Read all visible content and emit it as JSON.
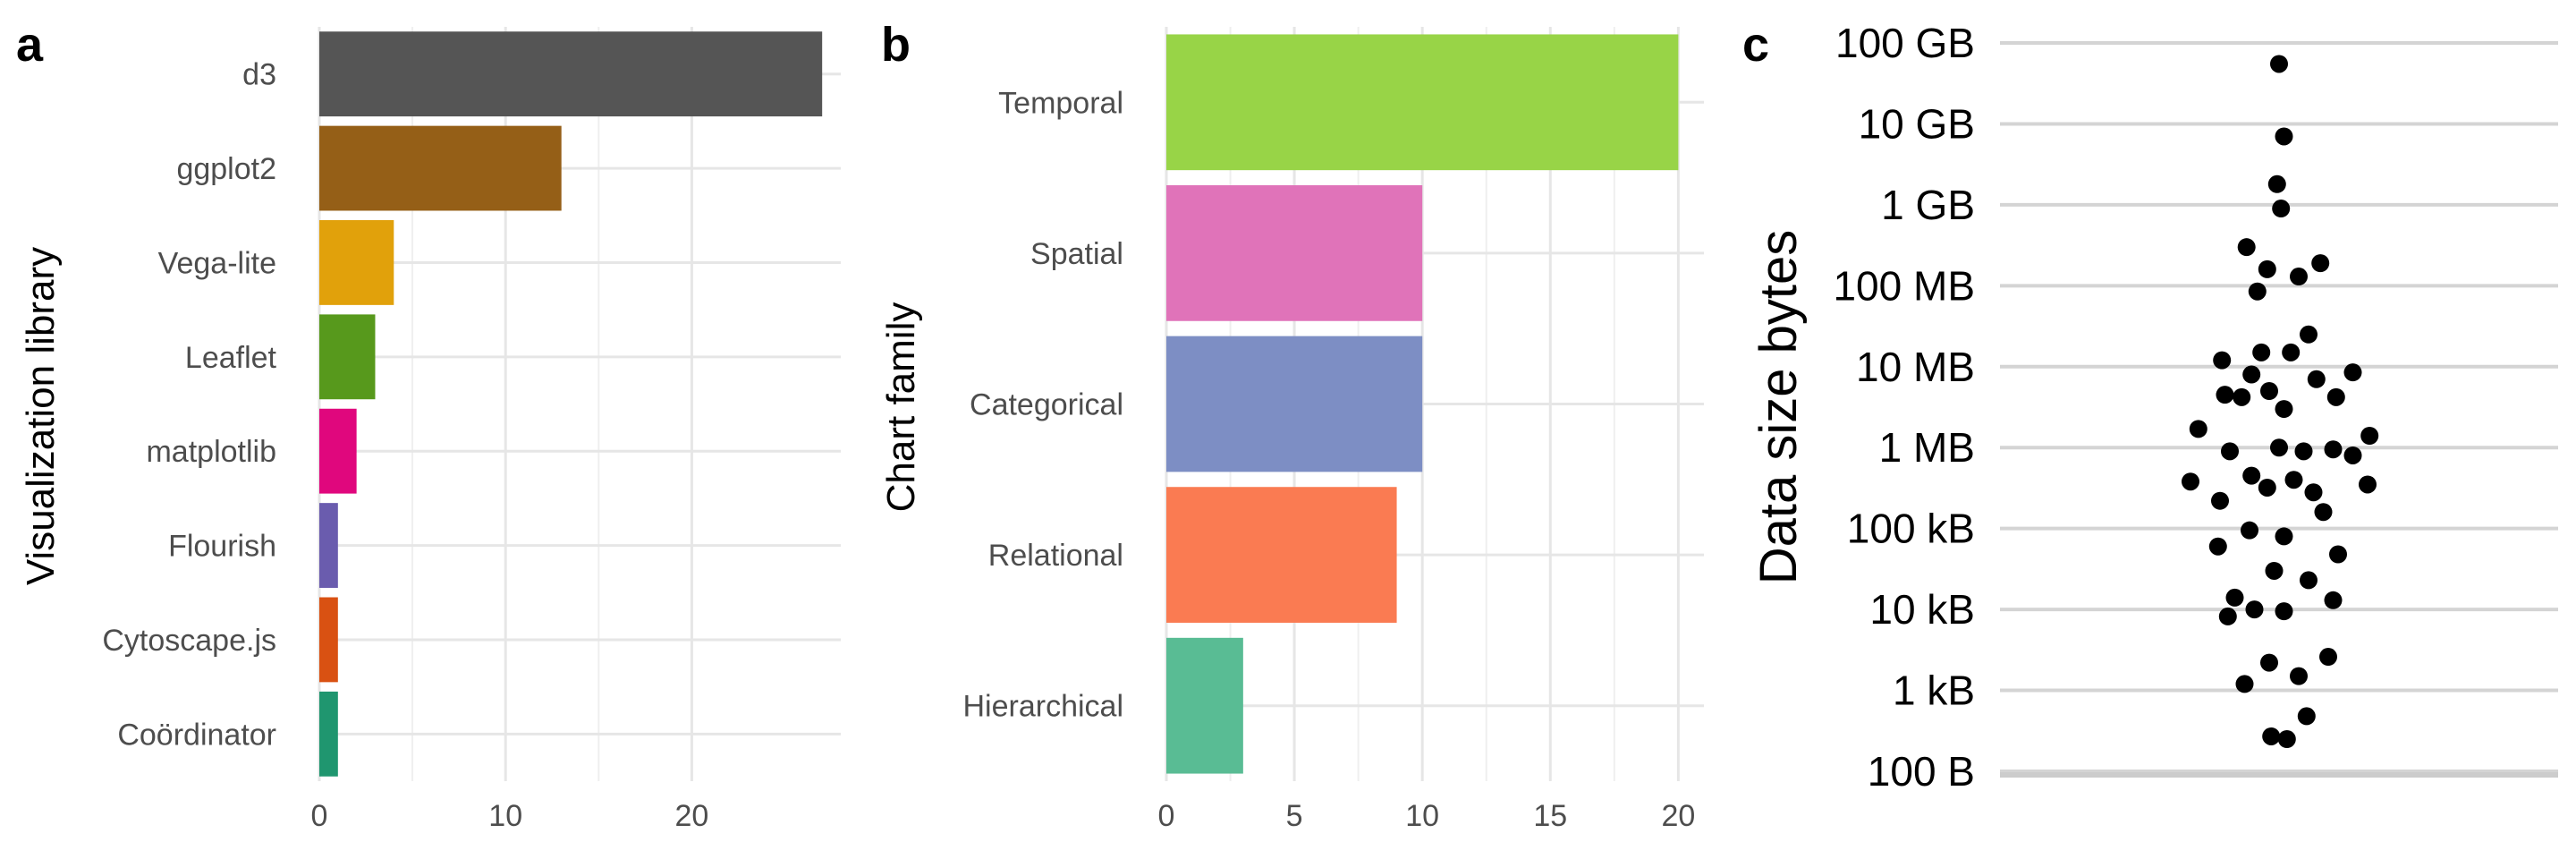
{
  "chart_data": [
    {
      "panel_label": "a",
      "type": "bar",
      "orientation": "horizontal",
      "ylabel": "Visualization library",
      "xlabel": "",
      "categories": [
        "d3",
        "ggplot2",
        "Vega-lite",
        "Leaflet",
        "matplotlib",
        "Flourish",
        "Cytoscape.js",
        "Coördinator"
      ],
      "values": [
        27,
        13,
        4,
        3,
        2,
        1,
        1,
        1
      ],
      "colors": [
        "#555555",
        "#955f17",
        "#e1a10b",
        "#57991c",
        "#e0077d",
        "#6a5cae",
        "#d95112",
        "#1f966f"
      ],
      "xlim": [
        0,
        28
      ],
      "xticks": [
        0,
        10,
        20
      ],
      "xtick_labels": [
        "0",
        "10",
        "20"
      ],
      "grid": true
    },
    {
      "panel_label": "b",
      "type": "bar",
      "orientation": "horizontal",
      "ylabel": "Chart family",
      "xlabel": "",
      "categories": [
        "Temporal",
        "Spatial",
        "Categorical",
        "Relational",
        "Hierarchical"
      ],
      "values": [
        20,
        10,
        10,
        9,
        3
      ],
      "colors": [
        "#98d447",
        "#e073b9",
        "#7d8ec4",
        "#fa7b52",
        "#59bc94"
      ],
      "xlim": [
        0,
        21
      ],
      "xticks": [
        0,
        5,
        10,
        15,
        20
      ],
      "xtick_labels": [
        "0",
        "5",
        "10",
        "15",
        "20"
      ],
      "grid": true
    },
    {
      "panel_label": "c",
      "type": "scatter",
      "ylabel": "Data size bytes",
      "xlabel": "",
      "yscale": "log",
      "ylim": [
        100,
        100000000000
      ],
      "yticks": [
        100,
        1000,
        10000,
        100000,
        1000000,
        10000000,
        100000000,
        1000000000,
        10000000000,
        100000000000
      ],
      "ytick_labels": [
        "100 B",
        "1 kB",
        "10 kB",
        "100 kB",
        "1 MB",
        "10 MB",
        "100 MB",
        "1 GB",
        "10 GB",
        "100 GB"
      ],
      "grid": true,
      "points": [
        {
          "x": 0,
          "y": 55000000000
        },
        {
          "x": 0.05,
          "y": 7000000000
        },
        {
          "x": -0.02,
          "y": 1800000000
        },
        {
          "x": 0.02,
          "y": 900000000
        },
        {
          "x": -0.33,
          "y": 300000000
        },
        {
          "x": 0.42,
          "y": 190000000
        },
        {
          "x": -0.12,
          "y": 160000000
        },
        {
          "x": 0.2,
          "y": 130000000
        },
        {
          "x": -0.22,
          "y": 85000000
        },
        {
          "x": 0.3,
          "y": 25000000
        },
        {
          "x": -0.18,
          "y": 15000000
        },
        {
          "x": 0.12,
          "y": 15000000
        },
        {
          "x": -0.58,
          "y": 12000000
        },
        {
          "x": 0.75,
          "y": 8500000
        },
        {
          "x": -0.28,
          "y": 8000000
        },
        {
          "x": 0.38,
          "y": 7000000
        },
        {
          "x": -0.1,
          "y": 5000000
        },
        {
          "x": -0.55,
          "y": 4500000
        },
        {
          "x": -0.38,
          "y": 4200000
        },
        {
          "x": 0.58,
          "y": 4200000
        },
        {
          "x": 0.05,
          "y": 3000000
        },
        {
          "x": -0.82,
          "y": 1700000
        },
        {
          "x": 0.92,
          "y": 1400000
        },
        {
          "x": -0.5,
          "y": 900000
        },
        {
          "x": 0,
          "y": 1000000
        },
        {
          "x": 0.25,
          "y": 900000
        },
        {
          "x": 0.55,
          "y": 950000
        },
        {
          "x": 0.75,
          "y": 800000
        },
        {
          "x": -0.28,
          "y": 450000
        },
        {
          "x": 0.15,
          "y": 400000
        },
        {
          "x": -0.9,
          "y": 380000
        },
        {
          "x": -0.12,
          "y": 320000
        },
        {
          "x": 0.35,
          "y": 280000
        },
        {
          "x": 0.9,
          "y": 350000
        },
        {
          "x": -0.6,
          "y": 220000
        },
        {
          "x": 0.45,
          "y": 160000
        },
        {
          "x": -0.3,
          "y": 95000
        },
        {
          "x": 0.05,
          "y": 80000
        },
        {
          "x": -0.62,
          "y": 60000
        },
        {
          "x": 0.6,
          "y": 48000
        },
        {
          "x": -0.05,
          "y": 30000
        },
        {
          "x": 0.3,
          "y": 23000
        },
        {
          "x": -0.45,
          "y": 14000
        },
        {
          "x": 0.55,
          "y": 13000
        },
        {
          "x": -0.25,
          "y": 10000
        },
        {
          "x": 0.05,
          "y": 9500
        },
        {
          "x": -0.52,
          "y": 8200
        },
        {
          "x": 0.5,
          "y": 2600
        },
        {
          "x": -0.1,
          "y": 2200
        },
        {
          "x": 0.2,
          "y": 1500
        },
        {
          "x": -0.35,
          "y": 1200
        },
        {
          "x": 0.28,
          "y": 480
        },
        {
          "x": -0.08,
          "y": 270
        },
        {
          "x": 0.08,
          "y": 250
        }
      ]
    }
  ]
}
